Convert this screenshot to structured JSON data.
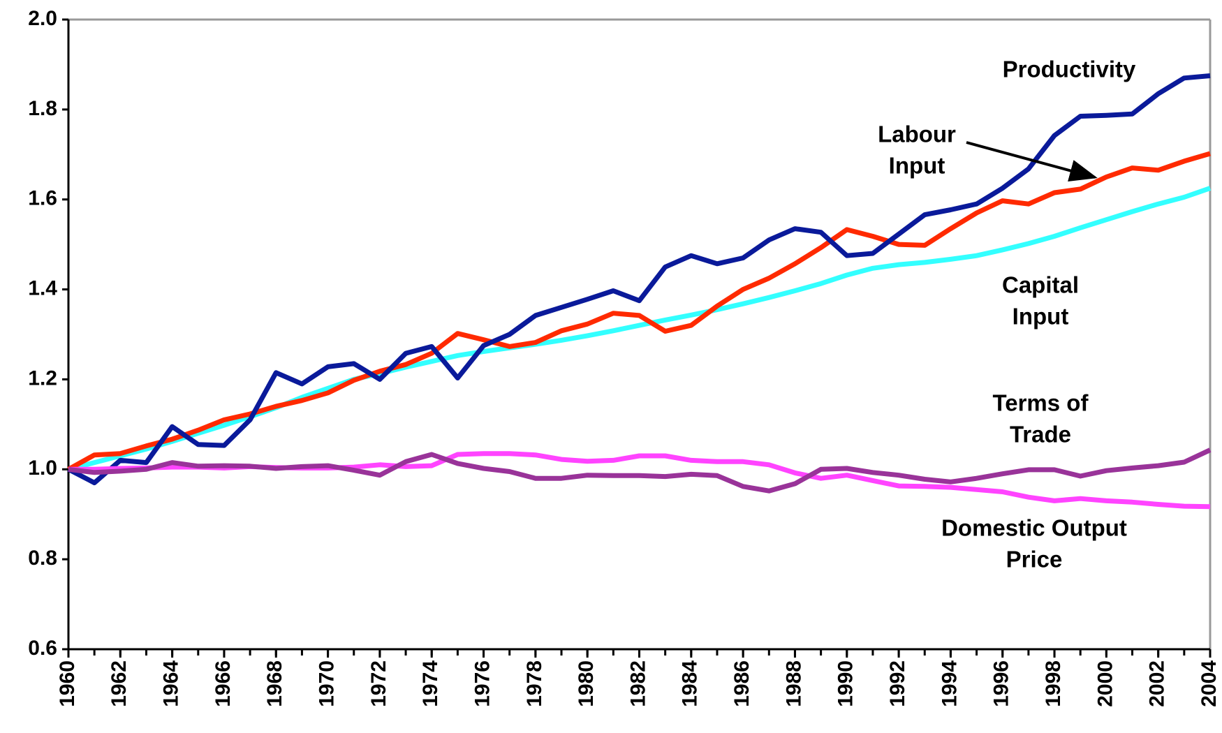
{
  "chart_data": {
    "type": "line",
    "x": [
      1960,
      1961,
      1962,
      1963,
      1964,
      1965,
      1966,
      1967,
      1968,
      1969,
      1970,
      1971,
      1972,
      1973,
      1974,
      1975,
      1976,
      1977,
      1978,
      1979,
      1980,
      1981,
      1982,
      1983,
      1984,
      1985,
      1986,
      1987,
      1988,
      1989,
      1990,
      1991,
      1992,
      1993,
      1994,
      1995,
      1996,
      1997,
      1998,
      1999,
      2000,
      2001,
      2002,
      2003,
      2004
    ],
    "xlim": [
      1960,
      2004
    ],
    "xticks": [
      1960,
      1962,
      1964,
      1966,
      1968,
      1970,
      1972,
      1974,
      1976,
      1978,
      1980,
      1982,
      1984,
      1986,
      1988,
      1990,
      1992,
      1994,
      1996,
      1998,
      2000,
      2002,
      2004
    ],
    "ylim": [
      0.6,
      2.0
    ],
    "yticks": [
      {
        "value": 0.6,
        "label": "0.6"
      },
      {
        "value": 0.8,
        "label": "0.8"
      },
      {
        "value": 1.0,
        "label": "1.0"
      },
      {
        "value": 1.2,
        "label": "1.2"
      },
      {
        "value": 1.4,
        "label": "1.4"
      },
      {
        "value": 1.6,
        "label": "1.6"
      },
      {
        "value": 1.8,
        "label": "1.8"
      },
      {
        "value": 2.0,
        "label": "2.0"
      }
    ],
    "series": [
      {
        "name": "Capital Input",
        "color": "#33ffff",
        "values": [
          1.0,
          1.015,
          1.03,
          1.045,
          1.062,
          1.08,
          1.098,
          1.117,
          1.137,
          1.16,
          1.18,
          1.2,
          1.213,
          1.227,
          1.24,
          1.253,
          1.262,
          1.27,
          1.278,
          1.287,
          1.297,
          1.308,
          1.32,
          1.332,
          1.343,
          1.355,
          1.368,
          1.382,
          1.397,
          1.413,
          1.432,
          1.447,
          1.455,
          1.46,
          1.467,
          1.475,
          1.488,
          1.502,
          1.518,
          1.537,
          1.555,
          1.573,
          1.59,
          1.605,
          1.625
        ]
      },
      {
        "name": "Labour Input",
        "color": "#ff2a00",
        "values": [
          1.0,
          1.032,
          1.035,
          1.052,
          1.067,
          1.087,
          1.11,
          1.123,
          1.14,
          1.153,
          1.17,
          1.198,
          1.218,
          1.233,
          1.258,
          1.302,
          1.288,
          1.273,
          1.282,
          1.308,
          1.323,
          1.347,
          1.342,
          1.307,
          1.32,
          1.363,
          1.4,
          1.425,
          1.457,
          1.493,
          1.533,
          1.518,
          1.5,
          1.498,
          1.535,
          1.57,
          1.597,
          1.59,
          1.615,
          1.623,
          1.65,
          1.67,
          1.665,
          1.685,
          1.702
        ]
      },
      {
        "name": "Productivity",
        "color": "#0a1a9a",
        "values": [
          1.0,
          0.97,
          1.02,
          1.015,
          1.095,
          1.055,
          1.053,
          1.11,
          1.215,
          1.19,
          1.228,
          1.235,
          1.2,
          1.258,
          1.273,
          1.203,
          1.275,
          1.3,
          1.342,
          1.36,
          1.378,
          1.397,
          1.375,
          1.45,
          1.475,
          1.457,
          1.47,
          1.51,
          1.535,
          1.527,
          1.475,
          1.48,
          1.523,
          1.566,
          1.577,
          1.59,
          1.625,
          1.668,
          1.742,
          1.785,
          1.787,
          1.79,
          1.835,
          1.87,
          1.875
        ]
      },
      {
        "name": "Domestic Output Price",
        "color": "#ff44ff",
        "values": [
          1.0,
          1.0,
          1.002,
          1.003,
          1.005,
          1.005,
          1.003,
          1.006,
          1.004,
          1.003,
          1.003,
          1.005,
          1.01,
          1.006,
          1.008,
          1.033,
          1.035,
          1.035,
          1.032,
          1.022,
          1.018,
          1.02,
          1.03,
          1.03,
          1.02,
          1.017,
          1.017,
          1.01,
          0.992,
          0.98,
          0.987,
          0.975,
          0.963,
          0.962,
          0.96,
          0.955,
          0.95,
          0.938,
          0.93,
          0.935,
          0.93,
          0.927,
          0.922,
          0.918,
          0.917
        ]
      },
      {
        "name": "Terms of Trade",
        "color": "#993399",
        "values": [
          1.0,
          0.993,
          0.996,
          1.0,
          1.015,
          1.007,
          1.008,
          1.007,
          1.002,
          1.006,
          1.008,
          0.998,
          0.987,
          1.017,
          1.033,
          1.013,
          1.002,
          0.995,
          0.98,
          0.98,
          0.987,
          0.986,
          0.986,
          0.984,
          0.989,
          0.986,
          0.962,
          0.952,
          0.968,
          1.0,
          1.002,
          0.993,
          0.987,
          0.978,
          0.972,
          0.98,
          0.99,
          0.999,
          0.999,
          0.985,
          0.997,
          1.003,
          1.008,
          1.016,
          1.043
        ]
      }
    ]
  }
}
